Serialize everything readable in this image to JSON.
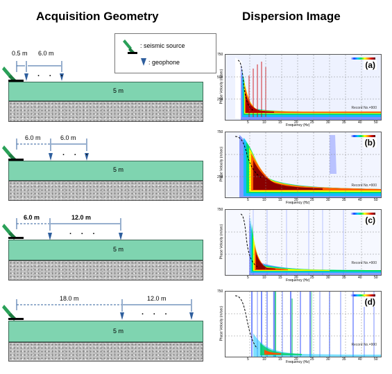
{
  "titles": {
    "left": "Acquisition Geometry",
    "right": "Dispersion Image"
  },
  "legend": {
    "source_label": ": seismic source",
    "geophone_label": ": geophone",
    "source_icon": "seismic-source-icon",
    "geophone_icon": "geophone-icon"
  },
  "colors": {
    "layer": "#7fd4b0",
    "source": "#2aa058",
    "geophone": "#2f5f9e",
    "arrow": "#2f5f9e"
  },
  "geometries": [
    {
      "id": "a",
      "offset": "0.5 m",
      "spacing": "6.0 m",
      "dots": "· · ·",
      "thickness": "5 m"
    },
    {
      "id": "b",
      "offset": "6.0 m",
      "spacing": "6.0 m",
      "dots": "· · ·",
      "thickness": "5 m"
    },
    {
      "id": "c",
      "offset": "6.0 m",
      "spacing": "12.0 m",
      "dots": "·  ·  ·",
      "thickness": "5 m"
    },
    {
      "id": "d",
      "offset": "18.0 m",
      "spacing": "12.0 m",
      "dots": "·  ·  ·",
      "thickness": "5 m"
    }
  ],
  "dispersion": {
    "y_axis_label": "Phase Velocity (m/sec)",
    "x_axis_label": "Frequency (Hz)",
    "y_ticks": [
      "750",
      "500",
      "250"
    ],
    "x_ticks": [
      "5",
      "10",
      "15",
      "20",
      "25",
      "30",
      "35",
      "40",
      "45",
      "50"
    ],
    "record_text": "Record No.=900",
    "panels": [
      {
        "label": "(a)"
      },
      {
        "label": "(b)"
      },
      {
        "label": "(c)"
      },
      {
        "label": "(d)"
      }
    ]
  }
}
